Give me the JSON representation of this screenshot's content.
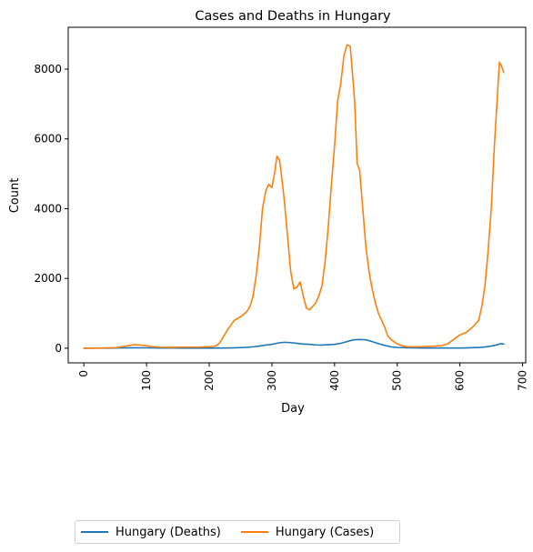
{
  "chart_data": {
    "type": "line",
    "title": "Cases and Deaths in Hungary",
    "xlabel": "Day",
    "ylabel": "Count",
    "xlim": [
      -25,
      705
    ],
    "ylim": [
      -420,
      9200
    ],
    "xticks": [
      0,
      100,
      200,
      300,
      400,
      500,
      600,
      700
    ],
    "xtick_labels": [
      "0",
      "100",
      "200",
      "300",
      "400",
      "500",
      "600",
      "700"
    ],
    "yticks": [
      0,
      2000,
      4000,
      6000,
      8000
    ],
    "ytick_labels": [
      "0",
      "2000",
      "4000",
      "6000",
      "8000"
    ],
    "xtick_rotation": 90,
    "grid": false,
    "legend_position": "bottom-left, below plot",
    "series": [
      {
        "name": "Hungary (Deaths)",
        "color": "#1f77b4",
        "x": [
          0,
          20,
          40,
          60,
          80,
          100,
          120,
          140,
          160,
          180,
          200,
          220,
          240,
          260,
          270,
          280,
          290,
          300,
          310,
          320,
          330,
          340,
          350,
          360,
          370,
          380,
          390,
          400,
          410,
          420,
          430,
          440,
          445,
          450,
          460,
          470,
          480,
          490,
          500,
          520,
          540,
          560,
          580,
          600,
          610,
          620,
          630,
          640,
          650,
          660,
          665,
          670
        ],
        "y": [
          0,
          2,
          3,
          8,
          12,
          10,
          6,
          4,
          3,
          3,
          3,
          5,
          10,
          25,
          40,
          60,
          90,
          110,
          150,
          170,
          160,
          140,
          120,
          110,
          95,
          90,
          100,
          110,
          140,
          190,
          240,
          250,
          245,
          240,
          190,
          130,
          80,
          40,
          20,
          10,
          5,
          5,
          5,
          5,
          8,
          15,
          22,
          35,
          60,
          100,
          130,
          120
        ]
      },
      {
        "name": "Hungary (Cases)",
        "color": "#ff7f0e",
        "x": [
          0,
          30,
          50,
          60,
          70,
          80,
          90,
          100,
          110,
          120,
          140,
          160,
          180,
          200,
          210,
          215,
          220,
          230,
          240,
          250,
          260,
          265,
          270,
          275,
          280,
          285,
          290,
          295,
          300,
          305,
          308,
          312,
          315,
          320,
          325,
          330,
          335,
          340,
          345,
          350,
          355,
          360,
          365,
          370,
          375,
          380,
          385,
          390,
          395,
          400,
          405,
          410,
          415,
          420,
          425,
          428,
          432,
          436,
          440,
          445,
          450,
          455,
          460,
          465,
          470,
          475,
          480,
          485,
          490,
          500,
          510,
          520,
          530,
          540,
          550,
          560,
          570,
          580,
          590,
          600,
          610,
          620,
          630,
          635,
          640,
          645,
          650,
          655,
          660,
          663,
          666,
          670
        ],
        "y": [
          0,
          5,
          15,
          40,
          70,
          100,
          90,
          70,
          40,
          30,
          25,
          30,
          30,
          40,
          60,
          120,
          250,
          550,
          800,
          900,
          1050,
          1200,
          1500,
          2100,
          2900,
          4000,
          4500,
          4700,
          4600,
          5100,
          5500,
          5400,
          5000,
          4200,
          3200,
          2200,
          1700,
          1750,
          1900,
          1500,
          1150,
          1100,
          1200,
          1300,
          1500,
          1800,
          2500,
          3500,
          4700,
          5800,
          7100,
          7600,
          8400,
          8700,
          8650,
          8000,
          7100,
          5300,
          5100,
          4000,
          2900,
          2200,
          1700,
          1300,
          1000,
          800,
          600,
          350,
          250,
          120,
          60,
          40,
          40,
          45,
          55,
          60,
          70,
          120,
          250,
          380,
          450,
          600,
          800,
          1200,
          1800,
          2800,
          4000,
          5800,
          7300,
          8200,
          8100,
          7900
        ]
      }
    ]
  }
}
